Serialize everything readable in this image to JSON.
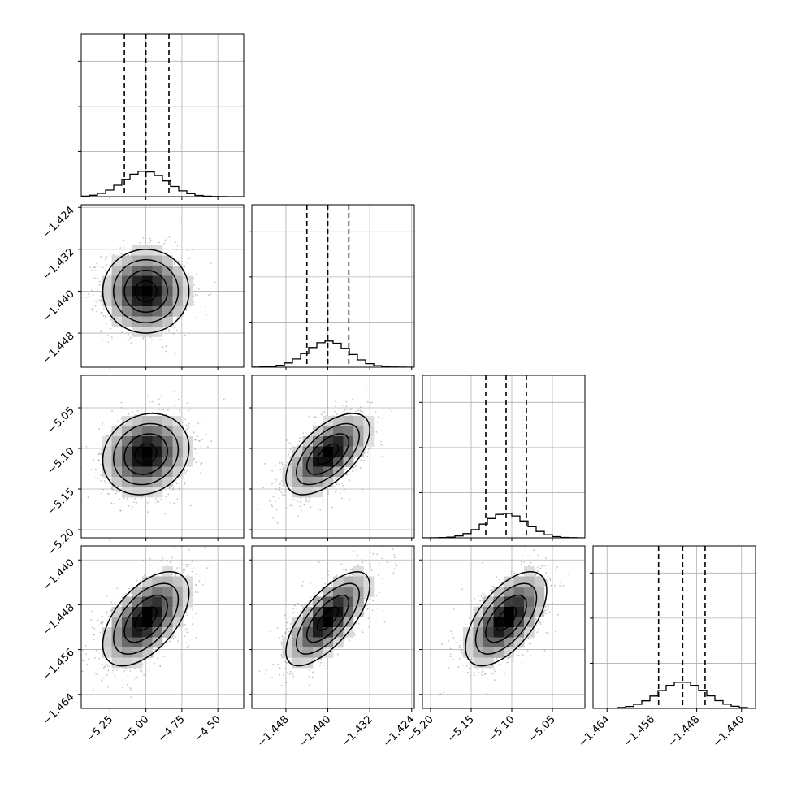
{
  "chart_data": {
    "type": "corner",
    "description_of_structure": "lower-triangular matrix of 1D histograms (diagonal) and 2D density contour panels",
    "parameters": [
      {
        "range": [
          -5.45,
          -4.32
        ],
        "ticks": [
          -5.25,
          -5.0,
          -4.75,
          -4.5
        ],
        "tick_labels": [
          "−5.25",
          "−5.00",
          "−4.75",
          "−4.50"
        ],
        "quantiles": [
          -5.15,
          -5.0,
          -4.84
        ],
        "mean": -5.0,
        "sd": 0.15,
        "hist_yticks": [
          300,
          600,
          900
        ],
        "hist_ymax": 1080
      },
      {
        "range": [
          -1.4545,
          -1.4235
        ],
        "ticks": [
          -1.448,
          -1.44,
          -1.432,
          -1.424
        ],
        "tick_labels": [
          "−1.448",
          "−1.440",
          "−1.432",
          "−1.424"
        ],
        "quantiles": [
          -1.444,
          -1.44,
          -1.436
        ],
        "mean": -1.44,
        "sd": 0.004,
        "hist_yticks": [
          300,
          600,
          900
        ],
        "hist_ymax": 1080
      },
      {
        "range": [
          -5.21,
          -5.01
        ],
        "ticks": [
          -5.2,
          -5.15,
          -5.1,
          -5.05
        ],
        "tick_labels": [
          "−5.20",
          "−5.15",
          "−5.10",
          "−5.05"
        ],
        "quantiles": [
          -5.132,
          -5.107,
          -5.082
        ],
        "mean": -5.107,
        "sd": 0.025,
        "hist_yticks": [
          300,
          600,
          900
        ],
        "hist_ymax": 1080
      },
      {
        "range": [
          -1.4665,
          -1.4375
        ],
        "ticks": [
          -1.464,
          -1.456,
          -1.448,
          -1.44
        ],
        "tick_labels": [
          "−1.464",
          "−1.456",
          "−1.448",
          "−1.440"
        ],
        "quantiles": [
          -1.4548,
          -1.4505,
          -1.4465
        ],
        "mean": -1.4505,
        "sd": 0.0042,
        "hist_yticks": [
          300,
          600,
          900
        ],
        "hist_ymax": 1080
      }
    ],
    "correlations": {
      "1-0": 0.0,
      "2-0": 0.15,
      "2-1": 0.6,
      "3-0": 0.55,
      "3-1": 0.7,
      "3-2": 0.6
    },
    "contour_levels_sigma": [
      0.5,
      1.0,
      1.5,
      2.0
    ],
    "grid": true,
    "colors": {
      "line": "#000000",
      "grid": "#b0b0b0",
      "scatter": "#9a9a9a"
    }
  }
}
